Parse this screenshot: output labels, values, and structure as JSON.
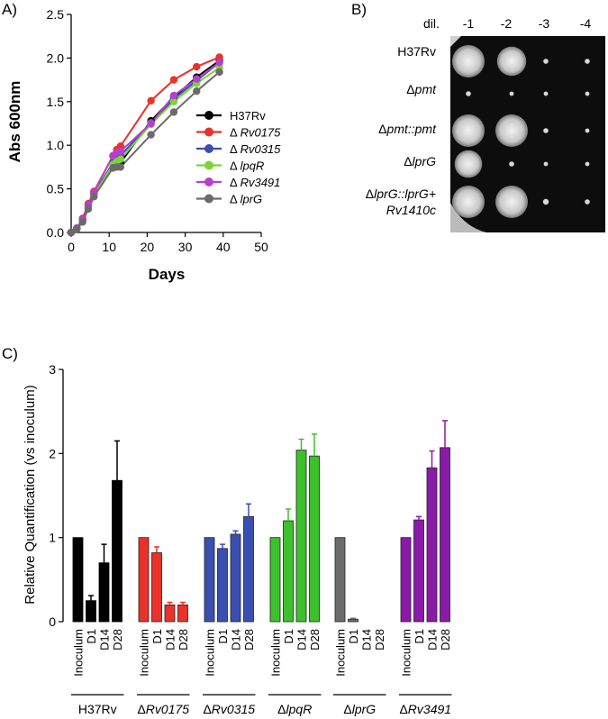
{
  "panels": {
    "a_label": "A)",
    "b_label": "B)",
    "c_label": "C)"
  },
  "chart_data": [
    {
      "type": "line",
      "panel": "A",
      "xlabel": "Days",
      "ylabel": "Abs  600nm",
      "xlim": [
        0,
        50
      ],
      "ylim": [
        0,
        2.5
      ],
      "xticks": [
        0,
        10,
        20,
        30,
        40,
        50
      ],
      "yticks": [
        0.0,
        0.5,
        1.0,
        1.5,
        2.0,
        2.5
      ],
      "xtick_labels": [
        "0",
        "10",
        "20",
        "30",
        "40",
        "50"
      ],
      "ytick_labels": [
        "0.0",
        "0.5",
        "1.0",
        "1.5",
        "2.0",
        "2.5"
      ],
      "legend_position": "right",
      "x": [
        0,
        1.5,
        3,
        4.5,
        6,
        11,
        12,
        13,
        21,
        27,
        33,
        39
      ],
      "series": [
        {
          "name": "H37Rv",
          "prefix": "",
          "italic_name": "",
          "color": "#000000",
          "values": [
            0.0,
            0.05,
            0.14,
            0.3,
            0.44,
            0.79,
            0.8,
            0.8,
            1.28,
            1.55,
            1.78,
            1.97
          ]
        },
        {
          "name": "Δ Rv0175",
          "prefix": "Δ ",
          "italic_name": "Rv0175",
          "color": "#e8322a",
          "values": [
            0.0,
            0.05,
            0.16,
            0.33,
            0.47,
            0.88,
            0.95,
            0.99,
            1.51,
            1.75,
            1.9,
            2.01
          ]
        },
        {
          "name": "Δ Rv0315",
          "prefix": "Δ ",
          "italic_name": "Rv0315",
          "color": "#3a4fb0",
          "values": [
            0.0,
            0.05,
            0.14,
            0.3,
            0.44,
            0.8,
            0.85,
            0.88,
            1.26,
            1.53,
            1.74,
            1.95
          ]
        },
        {
          "name": "Δ lpqR",
          "prefix": "Δ ",
          "italic_name": "lpqR",
          "color": "#7ed23a",
          "values": [
            0.0,
            0.05,
            0.13,
            0.29,
            0.43,
            0.78,
            0.82,
            0.84,
            1.24,
            1.5,
            1.71,
            1.89
          ]
        },
        {
          "name": "Δ Rv3491",
          "prefix": "Δ ",
          "italic_name": "Rv3491",
          "color": "#b83fce",
          "values": [
            0.0,
            0.05,
            0.15,
            0.32,
            0.46,
            0.88,
            0.92,
            0.93,
            1.25,
            1.57,
            1.76,
            1.95
          ]
        },
        {
          "name": "Δ lprG",
          "prefix": "Δ ",
          "italic_name": "lprG",
          "color": "#6b6b6b",
          "values": [
            0.0,
            0.04,
            0.12,
            0.27,
            0.41,
            0.74,
            0.75,
            0.75,
            1.12,
            1.38,
            1.62,
            1.84
          ]
        }
      ]
    },
    {
      "type": "bar",
      "panel": "C",
      "ylabel": "Relative Quantification (vs inoculum)",
      "ylim": [
        0,
        3
      ],
      "yticks": [
        0,
        1,
        2,
        3
      ],
      "ytick_labels": [
        "0",
        "1",
        "2",
        "3"
      ],
      "categories": [
        "Inoculum",
        "D1",
        "D14",
        "D28"
      ],
      "groups": [
        {
          "name": "H37Rv",
          "delta": "",
          "italic_name": "",
          "color": "#000000",
          "values": [
            1.0,
            0.25,
            0.7,
            1.68
          ],
          "errors": [
            0,
            0.06,
            0.22,
            0.47
          ]
        },
        {
          "name": "ΔRv0175",
          "delta": "Δ",
          "italic_name": "Rv0175",
          "color": "#e8322a",
          "values": [
            1.0,
            0.82,
            0.2,
            0.2
          ],
          "errors": [
            0,
            0.07,
            0.03,
            0.03
          ]
        },
        {
          "name": "ΔRv0315",
          "delta": "Δ",
          "italic_name": "Rv0315",
          "color": "#3a4fb0",
          "values": [
            1.0,
            0.87,
            1.04,
            1.25
          ],
          "errors": [
            0,
            0.05,
            0.04,
            0.15
          ]
        },
        {
          "name": "ΔlpqR",
          "delta": "Δ",
          "italic_name": "lpqR",
          "color": "#3cc02c",
          "values": [
            1.0,
            1.2,
            2.04,
            1.97
          ],
          "errors": [
            0,
            0.14,
            0.13,
            0.26
          ]
        },
        {
          "name": "ΔlprG",
          "delta": "Δ",
          "italic_name": "lprG",
          "color": "#6b6b6b",
          "values": [
            1.0,
            0.03,
            0.0,
            0.0
          ],
          "errors": [
            0,
            0.01,
            0,
            0
          ]
        },
        {
          "name": "ΔRv3491",
          "delta": "Δ",
          "italic_name": "Rv3491",
          "color": "#8a1aa8",
          "values": [
            1.0,
            1.21,
            1.83,
            2.07
          ],
          "errors": [
            0,
            0.04,
            0.2,
            0.32
          ]
        }
      ]
    }
  ],
  "plate": {
    "dil_label": "dil.",
    "dilutions": [
      "-1",
      "-2",
      "-3",
      "-4"
    ],
    "rows": [
      {
        "label": "H37Rv",
        "label_prefix": "",
        "label_italic": "",
        "label_line2": "",
        "growth": [
          1,
          0.8,
          0.1,
          0.1
        ]
      },
      {
        "label": "Δpmt",
        "label_prefix": "Δ",
        "label_italic": "pmt",
        "label_line2": "",
        "growth": [
          0.1,
          0.05,
          0.05,
          0.05
        ]
      },
      {
        "label": "Δpmt::pmt",
        "label_prefix": "Δ",
        "label_italic": "pmt::pmt",
        "label_line2": "",
        "growth": [
          1,
          0.9,
          0.1,
          0.05
        ]
      },
      {
        "label": "ΔlprG",
        "label_prefix": "Δ",
        "label_italic": "lprG",
        "label_line2": "",
        "growth": [
          0.75,
          0.1,
          0.05,
          0.05
        ]
      },
      {
        "label": "ΔlprG::lprG+ Rv1410c",
        "label_prefix": "Δ",
        "label_italic": "lprG::lprG+",
        "label_line2": "Rv1410c",
        "growth": [
          1,
          0.9,
          0.15,
          0.1
        ]
      }
    ]
  }
}
